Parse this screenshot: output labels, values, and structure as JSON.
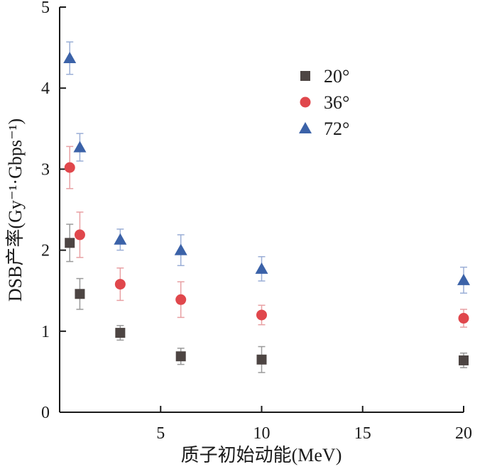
{
  "chart_data": {
    "type": "scatter",
    "title": "",
    "xlabel": "质子初始动能(MeV)",
    "ylabel": "DSB产率(Gy⁻¹·Gbps⁻¹)",
    "xlim": [
      0,
      20
    ],
    "ylim": [
      0,
      5
    ],
    "xticks": [
      5,
      10,
      15,
      20
    ],
    "yticks": [
      0,
      1,
      2,
      3,
      4,
      5
    ],
    "grid": false,
    "legend_position": "top-right",
    "series": [
      {
        "name": "20°",
        "marker": "square",
        "color": "#4d4543",
        "error_color": "#9a9a9a",
        "points": [
          {
            "x": 0.5,
            "y": 2.09,
            "err": 0.23
          },
          {
            "x": 1,
            "y": 1.46,
            "err": 0.19
          },
          {
            "x": 3,
            "y": 0.98,
            "err": 0.09
          },
          {
            "x": 6,
            "y": 0.69,
            "err": 0.1
          },
          {
            "x": 10,
            "y": 0.65,
            "err": 0.16
          },
          {
            "x": 20,
            "y": 0.64,
            "err": 0.09
          }
        ]
      },
      {
        "name": "36°",
        "marker": "circle",
        "color": "#e0474c",
        "error_color": "#e8a0a3",
        "points": [
          {
            "x": 0.5,
            "y": 3.02,
            "err": 0.26
          },
          {
            "x": 1,
            "y": 2.19,
            "err": 0.28
          },
          {
            "x": 3,
            "y": 1.58,
            "err": 0.2
          },
          {
            "x": 6,
            "y": 1.39,
            "err": 0.22
          },
          {
            "x": 10,
            "y": 1.2,
            "err": 0.12
          },
          {
            "x": 20,
            "y": 1.16,
            "err": 0.11
          }
        ]
      },
      {
        "name": "72°",
        "marker": "triangle",
        "color": "#3b62a8",
        "error_color": "#9aaed6",
        "points": [
          {
            "x": 0.5,
            "y": 4.37,
            "err": 0.2
          },
          {
            "x": 1,
            "y": 3.27,
            "err": 0.17
          },
          {
            "x": 3,
            "y": 2.13,
            "err": 0.13
          },
          {
            "x": 6,
            "y": 2.0,
            "err": 0.19
          },
          {
            "x": 10,
            "y": 1.77,
            "err": 0.15
          },
          {
            "x": 20,
            "y": 1.63,
            "err": 0.16
          }
        ]
      }
    ]
  }
}
